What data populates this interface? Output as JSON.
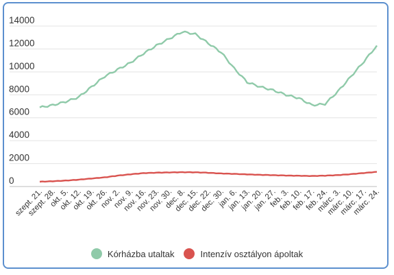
{
  "chart_data": {
    "type": "line",
    "title": "",
    "xlabel": "",
    "ylabel": "",
    "ylim": [
      0,
      14000
    ],
    "yticks": [
      0,
      2000,
      4000,
      6000,
      8000,
      10000,
      12000,
      14000
    ],
    "grid": true,
    "legend_position": "bottom",
    "categories": [
      "szept. 21.",
      "szept. 28.",
      "okt. 5.",
      "okt. 12.",
      "okt. 19.",
      "okt. 26.",
      "nov. 2.",
      "nov. 9.",
      "nov. 16.",
      "nov. 23.",
      "nov. 30.",
      "dec. 8.",
      "dec. 15.",
      "dec. 22.",
      "dec. 30.",
      "jan. 6.",
      "jan. 13.",
      "jan. 20.",
      "jan. 27.",
      "feb. 3.",
      "feb. 10.",
      "feb. 17.",
      "feb. 24.",
      "márc. 3.",
      "márc. 10.",
      "márc. 17.",
      "márc. 24."
    ],
    "series": [
      {
        "name": "Kórházba utaltak",
        "color": "#8fcaa9",
        "values": [
          6900,
          7100,
          7400,
          7800,
          8700,
          9600,
          10200,
          10800,
          11600,
          12300,
          12900,
          13500,
          13300,
          12500,
          11700,
          10300,
          9100,
          8700,
          8400,
          8000,
          7700,
          7100,
          7200,
          8300,
          9600,
          10900,
          12300
        ]
      },
      {
        "name": "Intenzív osztályon ápoltak",
        "color": "#d9534f",
        "values": [
          420,
          460,
          520,
          600,
          700,
          800,
          950,
          1070,
          1170,
          1210,
          1230,
          1250,
          1240,
          1200,
          1140,
          1100,
          1060,
          1020,
          990,
          960,
          940,
          920,
          950,
          1000,
          1080,
          1180,
          1280
        ]
      }
    ]
  },
  "legend": {
    "items": [
      {
        "label": "Kórházba utaltak",
        "color": "#8fcaa9"
      },
      {
        "label": "Intenzív osztályon ápoltak",
        "color": "#d9534f"
      }
    ]
  }
}
